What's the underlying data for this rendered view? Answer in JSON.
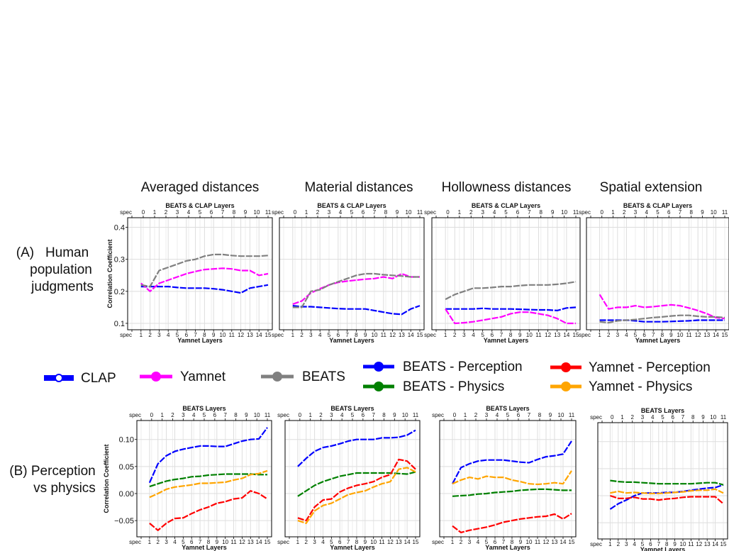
{
  "column_titles": [
    "Averaged distances",
    "Material distances",
    "Hollowness distances",
    "Spatial extension"
  ],
  "row_labels": {
    "A": [
      "(A)   Human",
      "population",
      "judgments"
    ],
    "B": [
      "(B) Perception",
      "vs physics"
    ]
  },
  "legend": [
    {
      "label": "CLAP",
      "color": "#0000ff",
      "marker": "open-circle"
    },
    {
      "label": "Yamnet",
      "color": "#ff00ff",
      "marker": "circle"
    },
    {
      "label": "BEATS",
      "color": "#808080",
      "marker": "circle"
    },
    {
      "label": "BEATS - Perception",
      "color": "#0000ff",
      "marker": "circle"
    },
    {
      "label": "BEATS - Physics",
      "color": "#008000",
      "marker": "circle"
    },
    {
      "label": "Yamnet - Perception",
      "color": "#ff0000",
      "marker": "circle"
    },
    {
      "label": "Yamnet - Physics",
      "color": "#ffa500",
      "marker": "circle"
    }
  ],
  "axis_text": {
    "top_A": "BEATS & CLAP Layers",
    "top_B": "BEATS Layers",
    "bottom": "Yamnet Layers",
    "ylabel": "Correlation Coefficient",
    "top_ticks": [
      "spec",
      "0",
      "1",
      "2",
      "3",
      "4",
      "5",
      "6",
      "7",
      "8",
      "9",
      "10",
      "11"
    ],
    "bottom_ticks": [
      "spec",
      "1",
      "2",
      "3",
      "4",
      "5",
      "6",
      "7",
      "8",
      "9",
      "10",
      "11",
      "12",
      "13",
      "14",
      "15"
    ]
  },
  "chart_data": [
    {
      "type": "line",
      "row": "A",
      "title": "Averaged distances",
      "ylim": [
        0.08,
        0.43
      ],
      "yticks": [
        "0.1",
        "0.2",
        "0.3",
        "0.4"
      ],
      "show_yticks": true,
      "grid": true,
      "x": [
        "1",
        "2",
        "3",
        "4",
        "5",
        "6",
        "7",
        "8",
        "9",
        "10",
        "11",
        "12",
        "13",
        "14",
        "15"
      ],
      "series": [
        {
          "name": "CLAP",
          "color": "#0000ff",
          "values": [
            0.215,
            0.215,
            0.215,
            0.215,
            0.212,
            0.21,
            0.21,
            0.21,
            0.208,
            0.205,
            0.2,
            0.195,
            0.21,
            0.215,
            0.22
          ]
        },
        {
          "name": "Yamnet",
          "color": "#ff00ff",
          "values": [
            0.225,
            0.2,
            0.225,
            0.235,
            0.245,
            0.255,
            0.262,
            0.268,
            0.27,
            0.272,
            0.27,
            0.265,
            0.265,
            0.25,
            0.255
          ]
        },
        {
          "name": "BEATS",
          "color": "#808080",
          "values": [
            0.22,
            0.215,
            0.265,
            0.275,
            0.285,
            0.295,
            0.3,
            0.31,
            0.315,
            0.315,
            0.312,
            0.31,
            0.31,
            0.31,
            0.312
          ]
        }
      ]
    },
    {
      "type": "line",
      "row": "A",
      "title": "Material distances",
      "ylim": [
        0.08,
        0.43
      ],
      "yticks": [
        "0.1",
        "0.2",
        "0.3",
        "0.4"
      ],
      "show_yticks": false,
      "grid": true,
      "x": [
        "1",
        "2",
        "3",
        "4",
        "5",
        "6",
        "7",
        "8",
        "9",
        "10",
        "11",
        "12",
        "13",
        "14",
        "15"
      ],
      "series": [
        {
          "name": "CLAP",
          "color": "#0000ff",
          "values": [
            0.155,
            0.152,
            0.152,
            0.15,
            0.148,
            0.146,
            0.145,
            0.145,
            0.145,
            0.14,
            0.135,
            0.13,
            0.128,
            0.145,
            0.155
          ]
        },
        {
          "name": "Yamnet",
          "color": "#ff00ff",
          "values": [
            0.16,
            0.17,
            0.195,
            0.208,
            0.22,
            0.228,
            0.232,
            0.235,
            0.238,
            0.24,
            0.245,
            0.24,
            0.255,
            0.245,
            0.245
          ]
        },
        {
          "name": "BEATS",
          "color": "#808080",
          "values": [
            0.15,
            0.15,
            0.2,
            0.205,
            0.22,
            0.23,
            0.24,
            0.25,
            0.255,
            0.255,
            0.252,
            0.25,
            0.248,
            0.245,
            0.245
          ]
        }
      ]
    },
    {
      "type": "line",
      "row": "A",
      "title": "Hollowness distances",
      "ylim": [
        0.08,
        0.43
      ],
      "yticks": [
        "0.1",
        "0.2",
        "0.3",
        "0.4"
      ],
      "show_yticks": false,
      "grid": true,
      "x": [
        "1",
        "2",
        "3",
        "4",
        "5",
        "6",
        "7",
        "8",
        "9",
        "10",
        "11",
        "12",
        "13",
        "14",
        "15"
      ],
      "series": [
        {
          "name": "CLAP",
          "color": "#0000ff",
          "values": [
            0.145,
            0.145,
            0.145,
            0.145,
            0.147,
            0.145,
            0.145,
            0.145,
            0.144,
            0.143,
            0.142,
            0.142,
            0.14,
            0.148,
            0.15
          ]
        },
        {
          "name": "Yamnet",
          "color": "#ff00ff",
          "values": [
            0.145,
            0.1,
            0.102,
            0.105,
            0.11,
            0.115,
            0.12,
            0.13,
            0.135,
            0.135,
            0.13,
            0.125,
            0.115,
            0.1,
            0.1
          ]
        },
        {
          "name": "BEATS",
          "color": "#808080",
          "values": [
            0.175,
            0.19,
            0.2,
            0.21,
            0.21,
            0.212,
            0.215,
            0.215,
            0.218,
            0.22,
            0.22,
            0.22,
            0.222,
            0.225,
            0.23
          ]
        }
      ]
    },
    {
      "type": "line",
      "row": "A",
      "title": "Spatial extension",
      "ylim": [
        0.08,
        0.43
      ],
      "yticks": [
        "0.1",
        "0.2",
        "0.3",
        "0.4"
      ],
      "show_yticks": false,
      "grid": true,
      "x": [
        "1",
        "2",
        "3",
        "4",
        "5",
        "6",
        "7",
        "8",
        "9",
        "10",
        "11",
        "12",
        "13",
        "14",
        "15"
      ],
      "series": [
        {
          "name": "CLAP",
          "color": "#0000ff",
          "values": [
            0.11,
            0.11,
            0.11,
            0.11,
            0.108,
            0.105,
            0.105,
            0.105,
            0.106,
            0.107,
            0.108,
            0.11,
            0.11,
            0.11,
            0.11
          ]
        },
        {
          "name": "Yamnet",
          "color": "#ff00ff",
          "values": [
            0.19,
            0.145,
            0.15,
            0.15,
            0.155,
            0.15,
            0.152,
            0.155,
            0.158,
            0.155,
            0.148,
            0.14,
            0.13,
            0.118,
            0.115
          ]
        },
        {
          "name": "BEATS",
          "color": "#808080",
          "values": [
            0.105,
            0.102,
            0.108,
            0.11,
            0.112,
            0.115,
            0.118,
            0.12,
            0.123,
            0.125,
            0.125,
            0.122,
            0.12,
            0.12,
            0.118
          ]
        }
      ]
    },
    {
      "type": "line",
      "row": "B",
      "title": "",
      "ylim": [
        -0.08,
        0.135
      ],
      "yticks": [
        "−0.05",
        "0.00",
        "0.05",
        "0.10"
      ],
      "show_yticks": true,
      "grid": true,
      "x": [
        "1",
        "2",
        "3",
        "4",
        "5",
        "6",
        "7",
        "8",
        "9",
        "10",
        "11",
        "12",
        "13",
        "14",
        "15"
      ],
      "series": [
        {
          "name": "BEATS - Perception",
          "color": "#0000ff",
          "values": [
            0.02,
            0.055,
            0.07,
            0.078,
            0.082,
            0.085,
            0.088,
            0.088,
            0.087,
            0.087,
            0.092,
            0.097,
            0.1,
            0.101,
            0.122
          ]
        },
        {
          "name": "BEATS - Physics",
          "color": "#008000",
          "values": [
            0.013,
            0.018,
            0.023,
            0.026,
            0.028,
            0.031,
            0.032,
            0.034,
            0.035,
            0.036,
            0.036,
            0.036,
            0.036,
            0.035,
            0.035
          ]
        },
        {
          "name": "Yamnet - Perception",
          "color": "#ff0000",
          "values": [
            -0.055,
            -0.068,
            -0.055,
            -0.046,
            -0.045,
            -0.037,
            -0.03,
            -0.025,
            -0.018,
            -0.015,
            -0.01,
            -0.008,
            0.005,
            0.0,
            -0.01
          ]
        },
        {
          "name": "Yamnet - Physics",
          "color": "#ffa500",
          "values": [
            -0.007,
            0.0,
            0.008,
            0.012,
            0.014,
            0.016,
            0.019,
            0.019,
            0.02,
            0.021,
            0.025,
            0.028,
            0.035,
            0.037,
            0.042
          ]
        }
      ]
    },
    {
      "type": "line",
      "row": "B",
      "title": "",
      "ylim": [
        -0.08,
        0.135
      ],
      "yticks": [
        "−0.05",
        "0.00",
        "0.05",
        "0.10"
      ],
      "show_yticks": false,
      "grid": true,
      "x": [
        "1",
        "2",
        "3",
        "4",
        "5",
        "6",
        "7",
        "8",
        "9",
        "10",
        "11",
        "12",
        "13",
        "14",
        "15"
      ],
      "series": [
        {
          "name": "BEATS - Perception",
          "color": "#0000ff",
          "values": [
            0.05,
            0.065,
            0.078,
            0.085,
            0.088,
            0.092,
            0.097,
            0.1,
            0.1,
            0.1,
            0.103,
            0.103,
            0.104,
            0.108,
            0.117
          ]
        },
        {
          "name": "BEATS - Physics",
          "color": "#008000",
          "values": [
            -0.005,
            0.005,
            0.015,
            0.022,
            0.027,
            0.032,
            0.035,
            0.038,
            0.038,
            0.038,
            0.038,
            0.038,
            0.037,
            0.036,
            0.04
          ]
        },
        {
          "name": "Yamnet - Perception",
          "color": "#ff0000",
          "values": [
            -0.045,
            -0.05,
            -0.025,
            -0.012,
            -0.01,
            0.003,
            0.01,
            0.015,
            0.018,
            0.022,
            0.03,
            0.035,
            0.063,
            0.06,
            0.045
          ]
        },
        {
          "name": "Yamnet - Physics",
          "color": "#ffa500",
          "values": [
            -0.05,
            -0.055,
            -0.032,
            -0.022,
            -0.018,
            -0.01,
            -0.002,
            0.002,
            0.005,
            0.012,
            0.018,
            0.022,
            0.045,
            0.048,
            0.04
          ]
        }
      ]
    },
    {
      "type": "line",
      "row": "B",
      "title": "",
      "ylim": [
        -0.08,
        0.135
      ],
      "yticks": [
        "−0.05",
        "0.00",
        "0.05",
        "0.10"
      ],
      "show_yticks": false,
      "grid": true,
      "x": [
        "1",
        "2",
        "3",
        "4",
        "5",
        "6",
        "7",
        "8",
        "9",
        "10",
        "11",
        "12",
        "13",
        "14",
        "15"
      ],
      "series": [
        {
          "name": "BEATS - Perception",
          "color": "#0000ff",
          "values": [
            0.018,
            0.048,
            0.055,
            0.06,
            0.062,
            0.062,
            0.062,
            0.06,
            0.058,
            0.057,
            0.063,
            0.068,
            0.07,
            0.073,
            0.097
          ]
        },
        {
          "name": "BEATS - Physics",
          "color": "#008000",
          "values": [
            -0.005,
            -0.004,
            -0.003,
            -0.001,
            0.0,
            0.002,
            0.003,
            0.004,
            0.006,
            0.007,
            0.008,
            0.008,
            0.007,
            0.006,
            0.006
          ]
        },
        {
          "name": "Yamnet - Perception",
          "color": "#ff0000",
          "values": [
            -0.06,
            -0.072,
            -0.068,
            -0.065,
            -0.062,
            -0.058,
            -0.053,
            -0.05,
            -0.047,
            -0.045,
            -0.043,
            -0.042,
            -0.038,
            -0.047,
            -0.037
          ]
        },
        {
          "name": "Yamnet - Physics",
          "color": "#ffa500",
          "values": [
            0.018,
            0.025,
            0.03,
            0.027,
            0.032,
            0.03,
            0.03,
            0.025,
            0.022,
            0.018,
            0.017,
            0.018,
            0.02,
            0.018,
            0.042
          ]
        }
      ]
    },
    {
      "type": "line",
      "row": "B",
      "title": "",
      "ylim": [
        -0.08,
        0.135
      ],
      "yticks": [
        "−0.05",
        "0.00",
        "0.05",
        "0.10"
      ],
      "show_yticks": false,
      "grid": true,
      "x": [
        "1",
        "2",
        "3",
        "4",
        "5",
        "6",
        "7",
        "8",
        "9",
        "10",
        "11",
        "12",
        "13",
        "14",
        "15"
      ],
      "series": [
        {
          "name": "BEATS - Perception",
          "color": "#0000ff",
          "values": [
            -0.025,
            -0.015,
            -0.008,
            0.0,
            0.005,
            0.005,
            0.005,
            0.006,
            0.006,
            0.008,
            0.01,
            0.012,
            0.014,
            0.015,
            0.02
          ]
        },
        {
          "name": "BEATS - Physics",
          "color": "#008000",
          "values": [
            0.028,
            0.026,
            0.025,
            0.025,
            0.024,
            0.023,
            0.022,
            0.022,
            0.022,
            0.022,
            0.022,
            0.023,
            0.024,
            0.024,
            0.02
          ]
        },
        {
          "name": "Yamnet - Perception",
          "color": "#ff0000",
          "values": [
            0.0,
            -0.005,
            -0.005,
            -0.003,
            -0.006,
            -0.006,
            -0.008,
            -0.006,
            -0.005,
            -0.003,
            -0.002,
            -0.002,
            -0.002,
            -0.002,
            -0.015
          ]
        },
        {
          "name": "Yamnet - Physics",
          "color": "#ffa500",
          "values": [
            0.005,
            0.008,
            0.005,
            0.006,
            0.005,
            0.004,
            0.004,
            0.005,
            0.006,
            0.007,
            0.009,
            0.01,
            0.01,
            0.012,
            0.005
          ]
        }
      ]
    }
  ]
}
